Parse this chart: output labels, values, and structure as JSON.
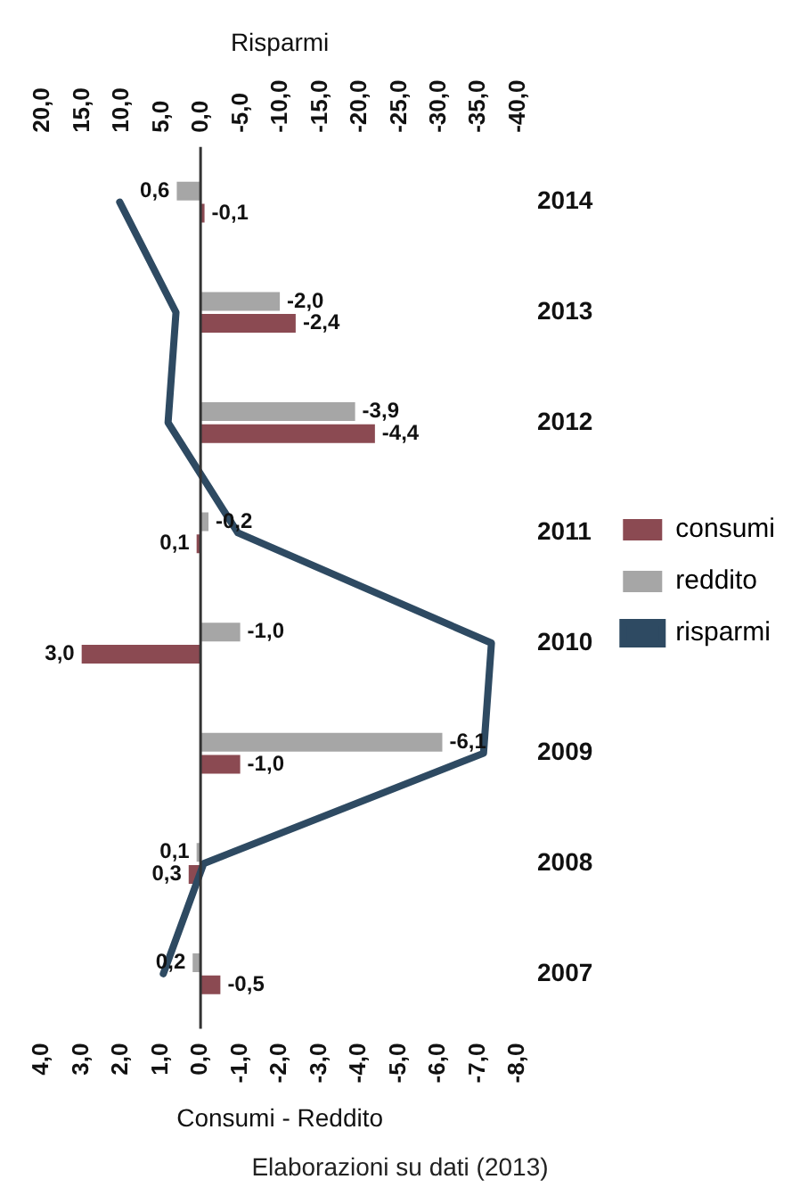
{
  "chart_data": {
    "type": "bar",
    "orientation": "horizontal",
    "xlabel": "Consumi - Reddito",
    "x2label": "Risparmi",
    "categories": [
      "2014",
      "2013",
      "2012",
      "2011",
      "2010",
      "2009",
      "2008",
      "2007"
    ],
    "series": [
      {
        "name": "consumi",
        "color": "#8b4a52",
        "values": [
          -0.1,
          -2.4,
          -4.4,
          0.1,
          3.0,
          -1.0,
          0.3,
          -0.5
        ],
        "value_labels": [
          "-0,1",
          "-2,4",
          "-4,4",
          "0,1",
          "3,0",
          "-1,0",
          "0,3",
          "-0,5"
        ]
      },
      {
        "name": "reddito",
        "color": "#a6a6a6",
        "values": [
          0.6,
          -2.0,
          -3.9,
          -0.2,
          -1.0,
          -6.1,
          0.1,
          0.2
        ],
        "value_labels": [
          "0,6",
          "-2,0",
          "-3,9",
          "-0,2",
          "-1,0",
          "-6,1",
          "0,1",
          "0,2"
        ]
      },
      {
        "name": "risparmi",
        "type": "line",
        "axis": "x2",
        "color": "#2e4a62",
        "values": [
          10.2,
          3.1,
          4.1,
          -4.7,
          -36.7,
          -35.7,
          -0.4,
          4.7
        ]
      }
    ],
    "xlim": [
      4,
      -8
    ],
    "xticks": [
      {
        "value": 4,
        "label": "4,0"
      },
      {
        "value": 3,
        "label": "3,0"
      },
      {
        "value": 2,
        "label": "2,0"
      },
      {
        "value": 1,
        "label": "1,0"
      },
      {
        "value": 0,
        "label": "0,0"
      },
      {
        "value": -1,
        "label": "-1,0"
      },
      {
        "value": -2,
        "label": "-2,0"
      },
      {
        "value": -3,
        "label": "-3,0"
      },
      {
        "value": -4,
        "label": "-4,0"
      },
      {
        "value": -5,
        "label": "-5,0"
      },
      {
        "value": -6,
        "label": "-6,0"
      },
      {
        "value": -7,
        "label": "-7,0"
      },
      {
        "value": -8,
        "label": "-8,0"
      }
    ],
    "x2lim": [
      20,
      -40
    ],
    "x2ticks": [
      {
        "value": 20,
        "label": "20,0"
      },
      {
        "value": 15,
        "label": "15,0"
      },
      {
        "value": 10,
        "label": "10,0"
      },
      {
        "value": 5,
        "label": "5,0"
      },
      {
        "value": 0,
        "label": "0,0"
      },
      {
        "value": -5,
        "label": "-5,0"
      },
      {
        "value": -10,
        "label": "-10,0"
      },
      {
        "value": -15,
        "label": "-15,0"
      },
      {
        "value": -20,
        "label": "-20,0"
      },
      {
        "value": -25,
        "label": "-25,0"
      },
      {
        "value": -30,
        "label": "-30,0"
      },
      {
        "value": -35,
        "label": "-35,0"
      },
      {
        "value": -40,
        "label": "-40,0"
      }
    ],
    "ref_lines": [
      {
        "axis": "x",
        "value": 0,
        "color": "#333333"
      }
    ],
    "grid": false,
    "legend": "right",
    "marker": "none",
    "line_style": "solid",
    "annotations": [
      "Elaborazioni su dati (2013)"
    ]
  }
}
